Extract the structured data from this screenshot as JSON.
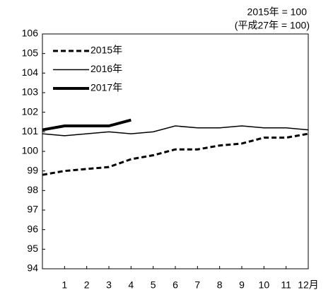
{
  "chart_data": {
    "type": "line",
    "annotations": [
      "2015年 = 100",
      "(平成27年 = 100)"
    ],
    "x": [
      0,
      1,
      2,
      3,
      4,
      5,
      6,
      7,
      8,
      9,
      10,
      11,
      12
    ],
    "series": [
      {
        "name": "2015年",
        "color": "#000000",
        "line_style": "dashed",
        "line_width": 3,
        "values": [
          98.8,
          99.0,
          99.1,
          99.2,
          99.6,
          99.8,
          100.1,
          100.1,
          100.3,
          100.4,
          100.7,
          100.7,
          100.9
        ]
      },
      {
        "name": "2016年",
        "color": "#000000",
        "line_style": "solid",
        "line_width": 1.5,
        "values": [
          100.9,
          100.8,
          100.9,
          101.0,
          100.9,
          101.0,
          101.3,
          101.2,
          101.2,
          101.3,
          101.2,
          101.2,
          101.1
        ]
      },
      {
        "name": "2017年",
        "color": "#000000",
        "line_style": "solid",
        "line_width": 4,
        "values": [
          101.1,
          101.3,
          101.3,
          101.3,
          101.6,
          null,
          null,
          null,
          null,
          null,
          null,
          null,
          null
        ]
      }
    ],
    "xlim": [
      0,
      12
    ],
    "xticks": [
      1,
      2,
      3,
      4,
      5,
      6,
      7,
      8,
      9,
      10,
      11,
      {
        "value": 12,
        "label": "12月"
      }
    ],
    "ylim": [
      94,
      106
    ],
    "yticks": [
      94,
      95,
      96,
      97,
      98,
      99,
      100,
      101,
      102,
      103,
      104,
      105,
      106
    ],
    "grid": false,
    "legend": "upper-left"
  }
}
